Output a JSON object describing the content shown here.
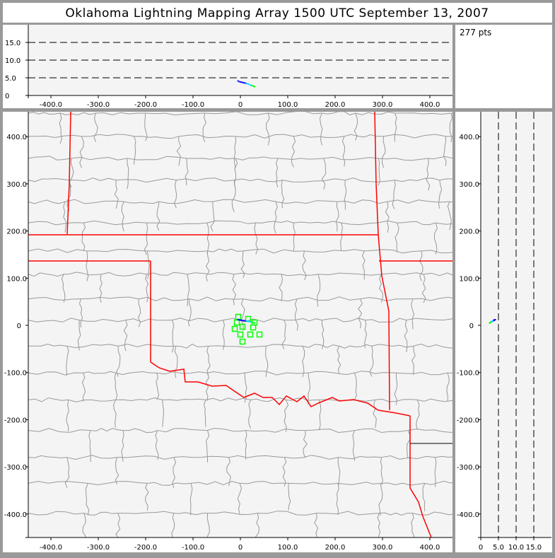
{
  "title": "Oklahoma Lightning Mapping Array   1500 UTC  September 13, 2007",
  "points_label": "277 pts",
  "colors": {
    "background": "#999999",
    "panel": "#f4f4f4",
    "state_border": "#ff0000",
    "county_border": "#999999",
    "station": "#00ff00",
    "source_early": "#0000ff",
    "source_late": "#00ff00"
  },
  "chart_data": [
    {
      "type": "scatter",
      "panel": "altitude-vs-east-west",
      "title": "",
      "xlabel": "",
      "ylabel": "",
      "xlim": [
        -450,
        450
      ],
      "ylim": [
        0,
        20
      ],
      "xticks": [
        "-400.0",
        "-300.0",
        "-200.0",
        "-100.0",
        "0",
        "100.0",
        "200.0",
        "300.0",
        "400.0"
      ],
      "xtick_values": [
        -400,
        -300,
        -200,
        -100,
        0,
        100,
        200,
        300,
        400
      ],
      "yticks": [
        "0",
        "5.0",
        "10.0",
        "15.0"
      ],
      "ytick_values": [
        0,
        5,
        10,
        15
      ],
      "grid": "dashed horizontal at 5, 10, 15"
    },
    {
      "type": "scatter",
      "panel": "plan-view",
      "title": "",
      "xlim": [
        -450,
        450
      ],
      "ylim": [
        -450,
        453
      ],
      "xticks": [
        "-400.0",
        "-300.0",
        "-200.0",
        "-100.0",
        "0",
        "100.0",
        "200.0",
        "300.0",
        "400.0"
      ],
      "xtick_values": [
        -400,
        -300,
        -200,
        -100,
        0,
        100,
        200,
        300,
        400
      ],
      "yticks": [
        "400.0",
        "300.0",
        "200.0",
        "100.0",
        "0",
        "-100.0",
        "-200.0",
        "-300.0",
        "-400.0"
      ],
      "ytick_values": [
        400,
        300,
        200,
        100,
        0,
        -100,
        -200,
        -300,
        -400
      ],
      "stations": [
        [
          -4.5,
          18
        ],
        [
          16.4,
          13.5
        ],
        [
          29.9,
          6
        ],
        [
          -7.5,
          6
        ],
        [
          4.5,
          -3
        ],
        [
          -11.9,
          -7.5
        ],
        [
          26.9,
          -4.5
        ],
        [
          0,
          -19.5
        ],
        [
          20.9,
          -19.5
        ],
        [
          40.3,
          -19.5
        ],
        [
          4.5,
          -34.5
        ]
      ]
    },
    {
      "type": "scatter",
      "panel": "north-south-vs-altitude",
      "title": "",
      "xlim": [
        0,
        20
      ],
      "ylim": [
        -450,
        453
      ],
      "xticks": [
        "0",
        "5.0",
        "10.0",
        "15.0"
      ],
      "xtick_values": [
        0,
        5,
        10,
        15
      ],
      "yticks": [
        "400.0",
        "300.0",
        "200.0",
        "100.0",
        "0",
        "-100.0",
        "-200.0",
        "-300.0",
        "-400.0"
      ],
      "ytick_values": [
        400,
        300,
        200,
        100,
        0,
        -100,
        -200,
        -300,
        -400
      ],
      "grid": "dashed vertical at 5, 10, 15"
    }
  ],
  "sources": [
    [
      -5,
      12,
      4.1
    ],
    [
      -2,
      11.5,
      3.9
    ],
    [
      1,
      11,
      3.8
    ],
    [
      4,
      10.5,
      3.7
    ],
    [
      7,
      10,
      3.6
    ],
    [
      10,
      9.5,
      3.5
    ],
    [
      13,
      9,
      3.4
    ],
    [
      16,
      8.5,
      3.3
    ],
    [
      19,
      8,
      3.1
    ],
    [
      22,
      7,
      2.9
    ],
    [
      25,
      6.5,
      2.8
    ],
    [
      28,
      5.5,
      2.6
    ],
    [
      30,
      5,
      2.5
    ]
  ]
}
